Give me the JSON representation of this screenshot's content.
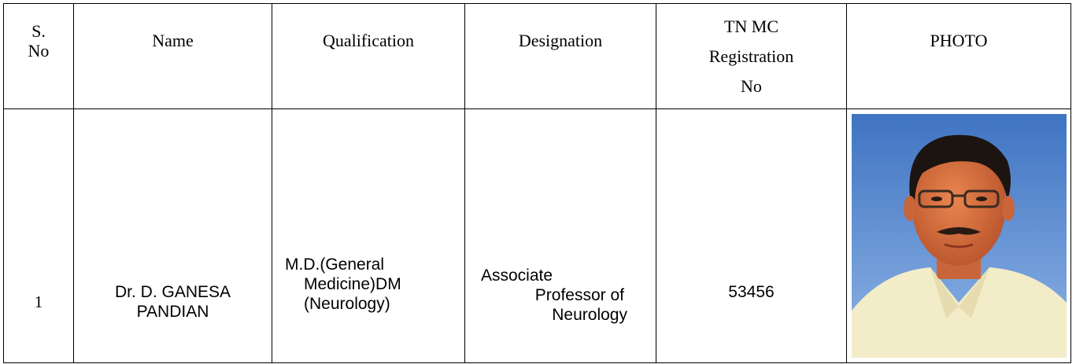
{
  "table": {
    "header": [
      [
        "S.",
        "No"
      ],
      [
        "Name"
      ],
      [
        "Qualification"
      ],
      [
        "Designation"
      ],
      [
        "TN MC",
        "Registration",
        "No"
      ],
      [
        "PHOTO"
      ]
    ],
    "rows": [
      [
        [
          "1"
        ],
        [
          "Dr. D. GANESA",
          "PANDIAN"
        ],
        [
          "M.D.(General",
          "Medicine)DM",
          "(Neurology)"
        ],
        [
          "Associate",
          "Professor of",
          "Neurology"
        ],
        [
          "53456"
        ]
      ]
    ]
  }
}
